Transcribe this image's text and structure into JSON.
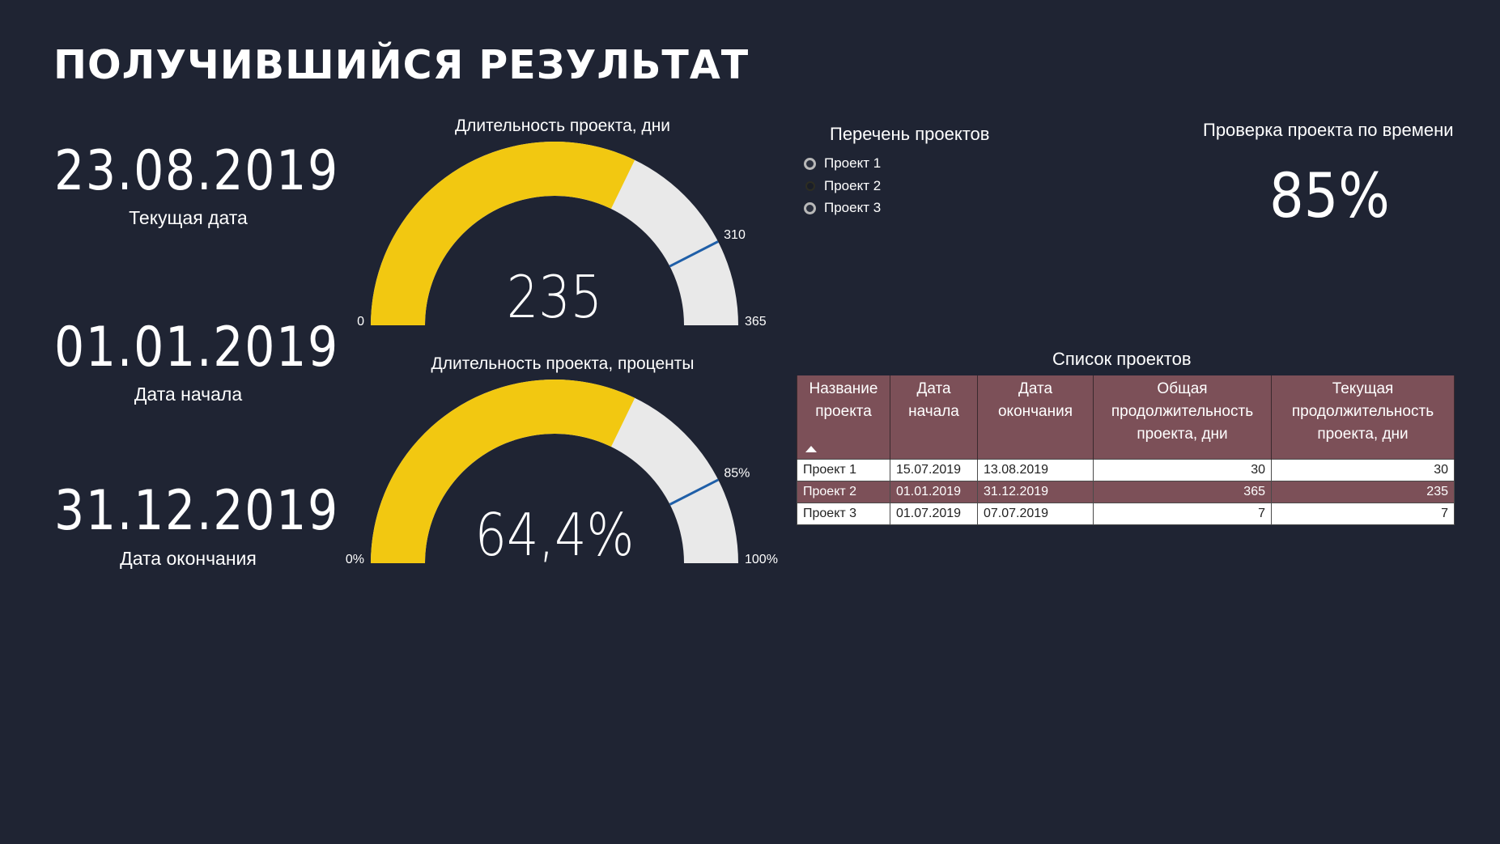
{
  "title": "ПОЛУЧИВШИЙСЯ РЕЗУЛЬТАТ",
  "dates": [
    {
      "value": "23.08.2019",
      "caption": "Текущая дата"
    },
    {
      "value": "01.01.2019",
      "caption": "Дата начала"
    },
    {
      "value": "31.12.2019",
      "caption": "Дата окончания"
    }
  ],
  "gauges": [
    {
      "title": "Длительность проекта, дни",
      "value": 235,
      "display_value": "235",
      "min": 0,
      "max": 365,
      "marker": 310,
      "min_label": "0",
      "max_label": "365",
      "marker_label": "310"
    },
    {
      "title": "Длительность проекта, проценты",
      "value": 64.4,
      "display_value": "64,4%",
      "min": 0,
      "max": 100,
      "marker": 85,
      "min_label": "0%",
      "max_label": "100%",
      "marker_label": "85%"
    }
  ],
  "gauge_colors": {
    "fill": "#f2c811",
    "track": "#e9e9e9",
    "marker": "#1f5fa8"
  },
  "project_list": {
    "title": "Перечень проектов",
    "items": [
      {
        "label": "Проект 1",
        "state": "on"
      },
      {
        "label": "Проект 2",
        "state": "off"
      },
      {
        "label": "Проект 3",
        "state": "on"
      }
    ]
  },
  "time_check": {
    "title": "Проверка проекта по времени",
    "value": "85%"
  },
  "table": {
    "title": "Список проектов",
    "headers": [
      "Название проекта",
      "Дата начала",
      "Дата окончания",
      "Общая продолжительность проекта, дни",
      "Текущая продолжительность проекта, дни"
    ],
    "sort_icon": "sort-ascending-icon",
    "rows": [
      [
        "Проект 1",
        "15.07.2019",
        "13.08.2019",
        "30",
        "30"
      ],
      [
        "Проект 2",
        "01.01.2019",
        "31.12.2019",
        "365",
        "235"
      ],
      [
        "Проект 3",
        "01.07.2019",
        "07.07.2019",
        "7",
        "7"
      ]
    ],
    "colors": {
      "header": "#7c5058",
      "highlight_row": "#7c5058",
      "row": "#ffffff"
    }
  },
  "colors": {
    "background": "#1f2433",
    "text": "#ffffff"
  }
}
